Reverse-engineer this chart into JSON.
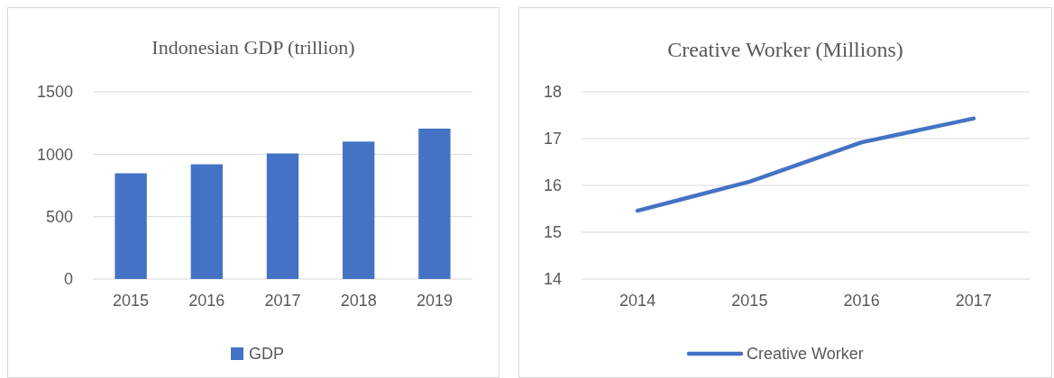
{
  "chart_data": [
    {
      "type": "bar",
      "title": "Indonesian GDP (trillion)",
      "categories": [
        "2015",
        "2016",
        "2017",
        "2018",
        "2019"
      ],
      "series": [
        {
          "name": "GDP",
          "color": "#4472c4",
          "values": [
            847,
            919,
            1006,
            1101,
            1205
          ]
        }
      ],
      "ylim": [
        0,
        1500
      ],
      "yticks": [
        0,
        500,
        1000,
        1500
      ],
      "grid": "y",
      "legend": "bottom"
    },
    {
      "type": "line",
      "title": "Creative Worker (Millions)",
      "categories": [
        "2014",
        "2015",
        "2016",
        "2017"
      ],
      "series": [
        {
          "name": "Creative Worker",
          "color": "#4472c4",
          "values": [
            15.46,
            16.08,
            16.92,
            17.43
          ]
        }
      ],
      "ylim": [
        14,
        18
      ],
      "yticks": [
        14,
        15,
        16,
        17,
        18
      ],
      "grid": "y",
      "legend": "bottom",
      "marker": "none",
      "line_style": "solid"
    }
  ]
}
